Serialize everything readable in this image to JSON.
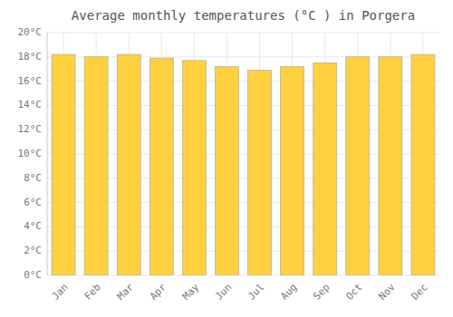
{
  "chart_data": {
    "type": "bar",
    "title": "Average monthly temperatures (°C ) in Porgera",
    "categories": [
      "Jan",
      "Feb",
      "Mar",
      "Apr",
      "May",
      "Jun",
      "Jul",
      "Aug",
      "Sep",
      "Oct",
      "Nov",
      "Dec"
    ],
    "values": [
      18.2,
      18.0,
      18.2,
      17.9,
      17.7,
      17.2,
      16.9,
      17.2,
      17.5,
      18.0,
      18.0,
      18.2
    ],
    "color": "#FFD040",
    "ylim": [
      0,
      20
    ],
    "yticks": [
      {
        "value": 0,
        "label": "0°C"
      },
      {
        "value": 2,
        "label": "2°C"
      },
      {
        "value": 4,
        "label": "4°C"
      },
      {
        "value": 6,
        "label": "6°C"
      },
      {
        "value": 8,
        "label": "8°C"
      },
      {
        "value": 10,
        "label": "10°C"
      },
      {
        "value": 12,
        "label": "12°C"
      },
      {
        "value": 14,
        "label": "14°C"
      },
      {
        "value": 16,
        "label": "16°C"
      },
      {
        "value": 18,
        "label": "18°C"
      },
      {
        "value": 20,
        "label": "20°C"
      }
    ],
    "grid": true
  }
}
